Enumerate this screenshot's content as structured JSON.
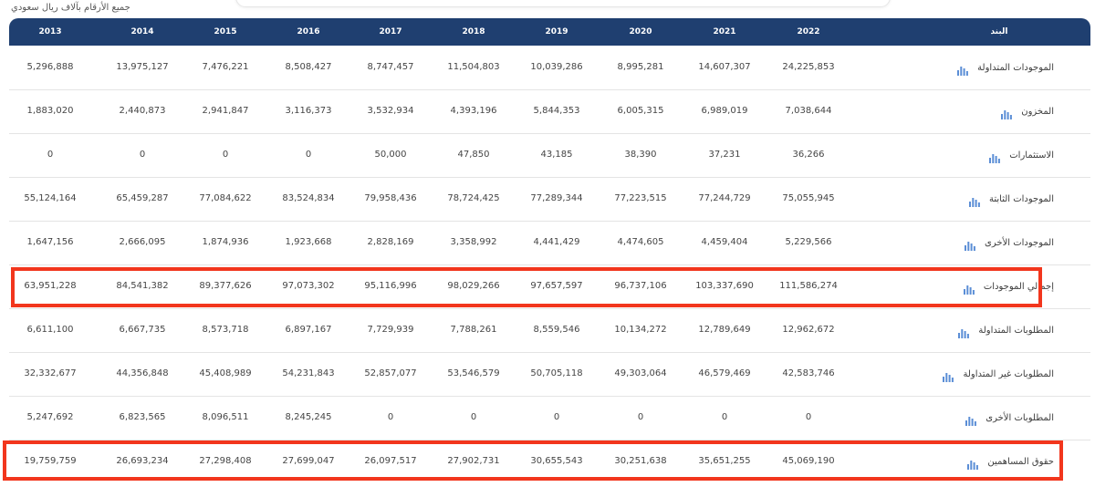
{
  "note": "جميع الأرقام بآلاف ريال سعودي",
  "header": {
    "item_label": "البند",
    "years": [
      "2022",
      "2021",
      "2020",
      "2019",
      "2018",
      "2017",
      "2016",
      "2015",
      "2014",
      "2013"
    ]
  },
  "icon": "bar-chart-icon",
  "accent_color": "#1f3f70",
  "highlight_color": "#f2361d",
  "rows": [
    {
      "label": "الموجودات المتداولة",
      "values": [
        "24,225,853",
        "14,607,307",
        "8,995,281",
        "10,039,286",
        "11,504,803",
        "8,747,457",
        "8,508,427",
        "7,476,221",
        "13,975,127",
        "5,296,888"
      ]
    },
    {
      "label": "المخزون",
      "values": [
        "7,038,644",
        "6,989,019",
        "6,005,315",
        "5,844,353",
        "4,393,196",
        "3,532,934",
        "3,116,373",
        "2,941,847",
        "2,440,873",
        "1,883,020"
      ]
    },
    {
      "label": "الاستثمارات",
      "values": [
        "36,266",
        "37,231",
        "38,390",
        "43,185",
        "47,850",
        "50,000",
        "0",
        "0",
        "0",
        "0"
      ]
    },
    {
      "label": "الموجودات الثابتة",
      "values": [
        "75,055,945",
        "77,244,729",
        "77,223,515",
        "77,289,344",
        "78,724,425",
        "79,958,436",
        "83,524,834",
        "77,084,622",
        "65,459,287",
        "55,124,164"
      ]
    },
    {
      "label": "الموجودات الأخرى",
      "values": [
        "5,229,566",
        "4,459,404",
        "4,474,605",
        "4,441,429",
        "3,358,992",
        "2,828,169",
        "1,923,668",
        "1,874,936",
        "2,666,095",
        "1,647,156"
      ]
    },
    {
      "label": "إجمالي الموجودات",
      "values": [
        "111,586,274",
        "103,337,690",
        "96,737,106",
        "97,657,597",
        "98,029,266",
        "95,116,996",
        "97,073,302",
        "89,377,626",
        "84,541,382",
        "63,951,228"
      ]
    },
    {
      "label": "المطلوبات المتداولة",
      "values": [
        "12,962,672",
        "12,789,649",
        "10,134,272",
        "8,559,546",
        "7,788,261",
        "7,729,939",
        "6,897,167",
        "8,573,718",
        "6,667,735",
        "6,611,100"
      ]
    },
    {
      "label": "المطلوبات غير المتداولة",
      "values": [
        "42,583,746",
        "46,579,469",
        "49,303,064",
        "50,705,118",
        "53,546,579",
        "52,857,077",
        "54,231,843",
        "45,408,989",
        "44,356,848",
        "32,332,677"
      ]
    },
    {
      "label": "المطلوبات الأخرى",
      "values": [
        "0",
        "0",
        "0",
        "0",
        "0",
        "0",
        "8,245,245",
        "8,096,511",
        "6,823,565",
        "5,247,692"
      ]
    },
    {
      "label": "حقوق المساهمين",
      "values": [
        "45,069,190",
        "35,651,255",
        "30,251,638",
        "30,655,543",
        "27,902,731",
        "26,097,517",
        "27,699,047",
        "27,298,408",
        "26,693,234",
        "19,759,759"
      ]
    }
  ]
}
